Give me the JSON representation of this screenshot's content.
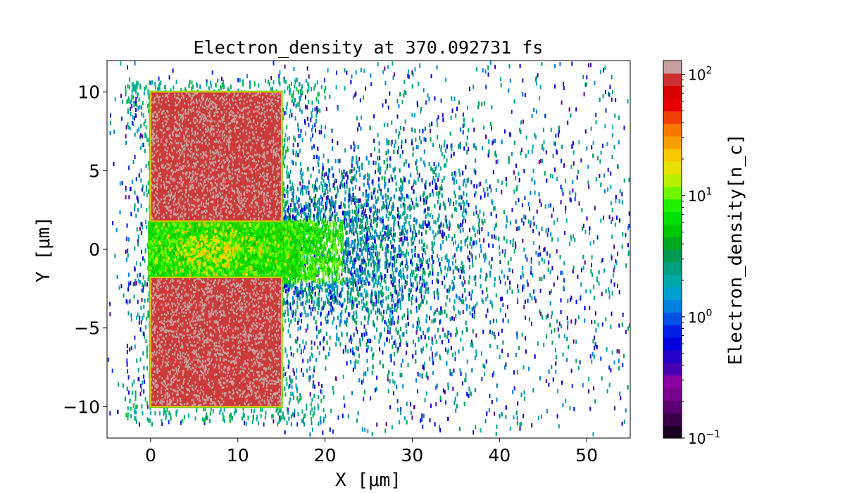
{
  "chart_data": {
    "type": "heatmap",
    "title": "Electron_density at 370.092731 fs",
    "xlabel": "X [μm]",
    "ylabel": "Y [μm]",
    "xlim": [
      -5,
      55
    ],
    "ylim": [
      -12,
      12
    ],
    "xticks": [
      0,
      10,
      20,
      30,
      40,
      50
    ],
    "yticks": [
      -10,
      -5,
      0,
      5,
      10
    ],
    "xtick_labels": [
      "0",
      "10",
      "20",
      "30",
      "40",
      "50"
    ],
    "ytick_labels": [
      "−10",
      "−5",
      "0",
      "5",
      "10"
    ],
    "colorbar": {
      "label": "Electron_density[n_c]",
      "scale": "log",
      "range": [
        0.1,
        130
      ],
      "ticks": [
        {
          "base": "10",
          "exp": "−1",
          "value": 0.1
        },
        {
          "base": "10",
          "exp": "0",
          "value": 1
        },
        {
          "base": "10",
          "exp": "1",
          "value": 10
        },
        {
          "base": "10",
          "exp": "2",
          "value": 100
        }
      ],
      "colors": [
        "#1a0022",
        "#3a0048",
        "#5a0070",
        "#7a0090",
        "#8a00a0",
        "#4a00b0",
        "#2400c8",
        "#0000dd",
        "#0020e8",
        "#0050e8",
        "#0080e0",
        "#00a0d0",
        "#00a8a8",
        "#00a080",
        "#009a50",
        "#00a820",
        "#00c800",
        "#00e000",
        "#20f000",
        "#70f800",
        "#b8f000",
        "#e8e000",
        "#f8c800",
        "#f8a000",
        "#f87800",
        "#f04000",
        "#e80000",
        "#d80000",
        "#cc3030",
        "#c8a0a0"
      ]
    },
    "regions": [
      {
        "name": "upper target",
        "x": [
          0,
          15
        ],
        "y": [
          1.8,
          10
        ],
        "density": 100,
        "color": "#cc3a3a"
      },
      {
        "name": "lower target",
        "x": [
          0,
          15
        ],
        "y": [
          -10,
          -1.8
        ],
        "density": 100,
        "color": "#cc3a3a"
      },
      {
        "name": "channel plasma",
        "x": [
          0,
          22
        ],
        "y": [
          -1.8,
          1.8
        ],
        "density": 8
      },
      {
        "name": "scattered electrons",
        "x": [
          -5,
          55
        ],
        "y": [
          -12,
          12
        ],
        "density": 0.5
      }
    ]
  }
}
